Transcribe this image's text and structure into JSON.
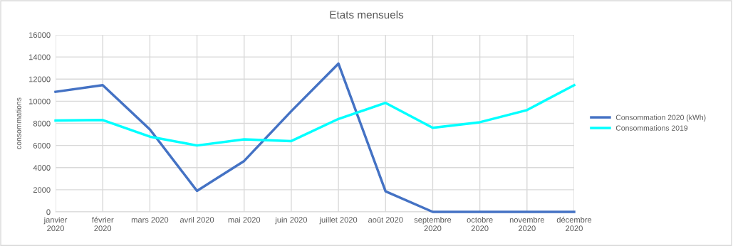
{
  "chart_data": {
    "type": "line",
    "title": "Etats mensuels",
    "ylabel": "consommations",
    "categories": [
      "janvier 2020",
      "février 2020",
      "mars 2020",
      "avril 2020",
      "mai 2020",
      "juin 2020",
      "juillet 2020",
      "août 2020",
      "septembre 2020",
      "octobre 2020",
      "novembre 2020",
      "décembre 2020"
    ],
    "series": [
      {
        "name": "Consommation 2020 (kWh)",
        "color": "#4472c4",
        "values": [
          10850,
          11450,
          7450,
          1900,
          4600,
          9100,
          13400,
          1850,
          0,
          0,
          0,
          0
        ]
      },
      {
        "name": "Consommations 2019",
        "color": "#00ffff",
        "values": [
          8250,
          8300,
          6800,
          6000,
          6550,
          6400,
          8400,
          9850,
          7600,
          8100,
          9200,
          11450
        ]
      }
    ],
    "ylim": [
      0,
      16000
    ],
    "yticks": [
      0,
      2000,
      4000,
      6000,
      8000,
      10000,
      12000,
      14000,
      16000
    ],
    "grid": true,
    "legend": "right",
    "marker": "none",
    "line_style": "solid"
  }
}
